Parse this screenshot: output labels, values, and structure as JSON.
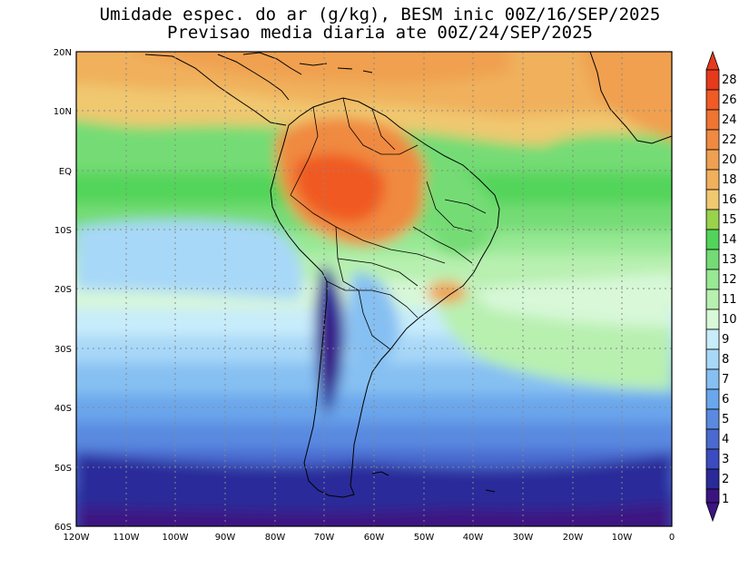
{
  "title_line1": "Umidade espec. do ar (g/kg), BESM inic 00Z/16/SEP/2025",
  "title_line2": "Previsao media diaria ate 00Z/24/SEP/2025",
  "lat_labels": [
    "20N",
    "10N",
    "EQ",
    "10S",
    "20S",
    "30S",
    "40S",
    "50S",
    "60S"
  ],
  "lon_labels": [
    "120W",
    "110W",
    "100W",
    "90W",
    "80W",
    "70W",
    "60W",
    "50W",
    "40W",
    "30W",
    "20W",
    "10W",
    "0"
  ],
  "colorbar_labels": [
    "28",
    "26",
    "24",
    "22",
    "20",
    "18",
    "16",
    "15",
    "14",
    "13",
    "12",
    "11",
    "10",
    "9",
    "8",
    "7",
    "6",
    "5",
    "4",
    "3",
    "2",
    "1"
  ],
  "palette": {
    "c1": "#3c1482",
    "c2": "#2a2a9a",
    "c3": "#3c4cc0",
    "c4": "#4a6ad0",
    "c5": "#5a8ae0",
    "c6": "#6aa6ec",
    "c7": "#86c0f2",
    "c8": "#a8d8f8",
    "c9": "#c8ecfa",
    "c10": "#d8f8d8",
    "c11": "#b8f0b0",
    "c12": "#98e894",
    "c13": "#74dc74",
    "c14": "#52d45a",
    "c15": "#9ad24c",
    "c16": "#f0c870",
    "c18": "#f0b05c",
    "c20": "#f0a050",
    "c22": "#f08a40",
    "c24": "#f07432",
    "c26": "#f05a24",
    "c28": "#e63a1c"
  }
}
